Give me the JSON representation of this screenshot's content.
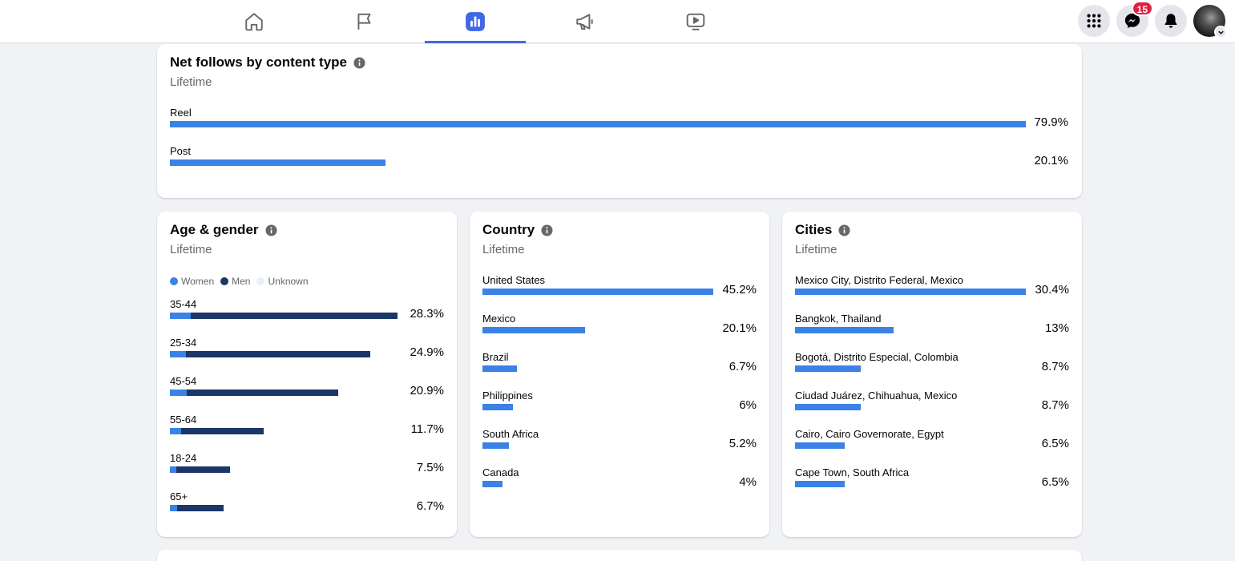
{
  "colors": {
    "accent": "#4267e6",
    "bar": "#3b82e6",
    "men": "#1c3668",
    "unknown": "#e7eefc",
    "badge": "#e41e3f"
  },
  "nav": {
    "tabs": [
      {
        "icon": "home-icon",
        "active": false
      },
      {
        "icon": "flag-icon",
        "active": false
      },
      {
        "icon": "insights-bar-chart-icon",
        "active": true
      },
      {
        "icon": "megaphone-icon",
        "active": false
      },
      {
        "icon": "video-icon",
        "active": false
      }
    ],
    "right": {
      "menu_icon": "grid-menu-icon",
      "messenger_icon": "messenger-icon",
      "messenger_badge": "15",
      "notifications_icon": "bell-icon",
      "account_icon": "chevron-down-icon"
    }
  },
  "content_type": {
    "title": "Net follows by content type",
    "subtitle": "Lifetime",
    "rows": [
      {
        "label": "Reel",
        "value": "79.9%",
        "pct": 79.9
      },
      {
        "label": "Post",
        "value": "20.1%",
        "pct": 20.1
      }
    ]
  },
  "age_gender": {
    "title": "Age & gender",
    "subtitle": "Lifetime",
    "legend": [
      "Women",
      "Men",
      "Unknown"
    ],
    "rows": [
      {
        "label": "35-44",
        "value": "28.3%",
        "pct": 28.3,
        "women_share": 0.09
      },
      {
        "label": "25-34",
        "value": "24.9%",
        "pct": 24.9,
        "women_share": 0.08
      },
      {
        "label": "45-54",
        "value": "20.9%",
        "pct": 20.9,
        "women_share": 0.1
      },
      {
        "label": "55-64",
        "value": "11.7%",
        "pct": 11.7,
        "women_share": 0.12
      },
      {
        "label": "18-24",
        "value": "7.5%",
        "pct": 7.5,
        "women_share": 0.1
      },
      {
        "label": "65+",
        "value": "6.7%",
        "pct": 6.7,
        "women_share": 0.13
      }
    ]
  },
  "country": {
    "title": "Country",
    "subtitle": "Lifetime",
    "rows": [
      {
        "label": "United States",
        "value": "45.2%",
        "pct": 45.2
      },
      {
        "label": "Mexico",
        "value": "20.1%",
        "pct": 20.1
      },
      {
        "label": "Brazil",
        "value": "6.7%",
        "pct": 6.7
      },
      {
        "label": "Philippines",
        "value": "6%",
        "pct": 6
      },
      {
        "label": "South Africa",
        "value": "5.2%",
        "pct": 5.2
      },
      {
        "label": "Canada",
        "value": "4%",
        "pct": 4
      }
    ]
  },
  "cities": {
    "title": "Cities",
    "subtitle": "Lifetime",
    "rows": [
      {
        "label": "Mexico City, Distrito Federal, Mexico",
        "value": "30.4%",
        "pct": 30.4
      },
      {
        "label": "Bangkok, Thailand",
        "value": "13%",
        "pct": 13
      },
      {
        "label": "Bogotá, Distrito Especial, Colombia",
        "value": "8.7%",
        "pct": 8.7
      },
      {
        "label": "Ciudad Juárez, Chihuahua, Mexico",
        "value": "8.7%",
        "pct": 8.7
      },
      {
        "label": "Cairo, Cairo Governorate, Egypt",
        "value": "6.5%",
        "pct": 6.5
      },
      {
        "label": "Cape Town, South Africa",
        "value": "6.5%",
        "pct": 6.5
      }
    ]
  }
}
